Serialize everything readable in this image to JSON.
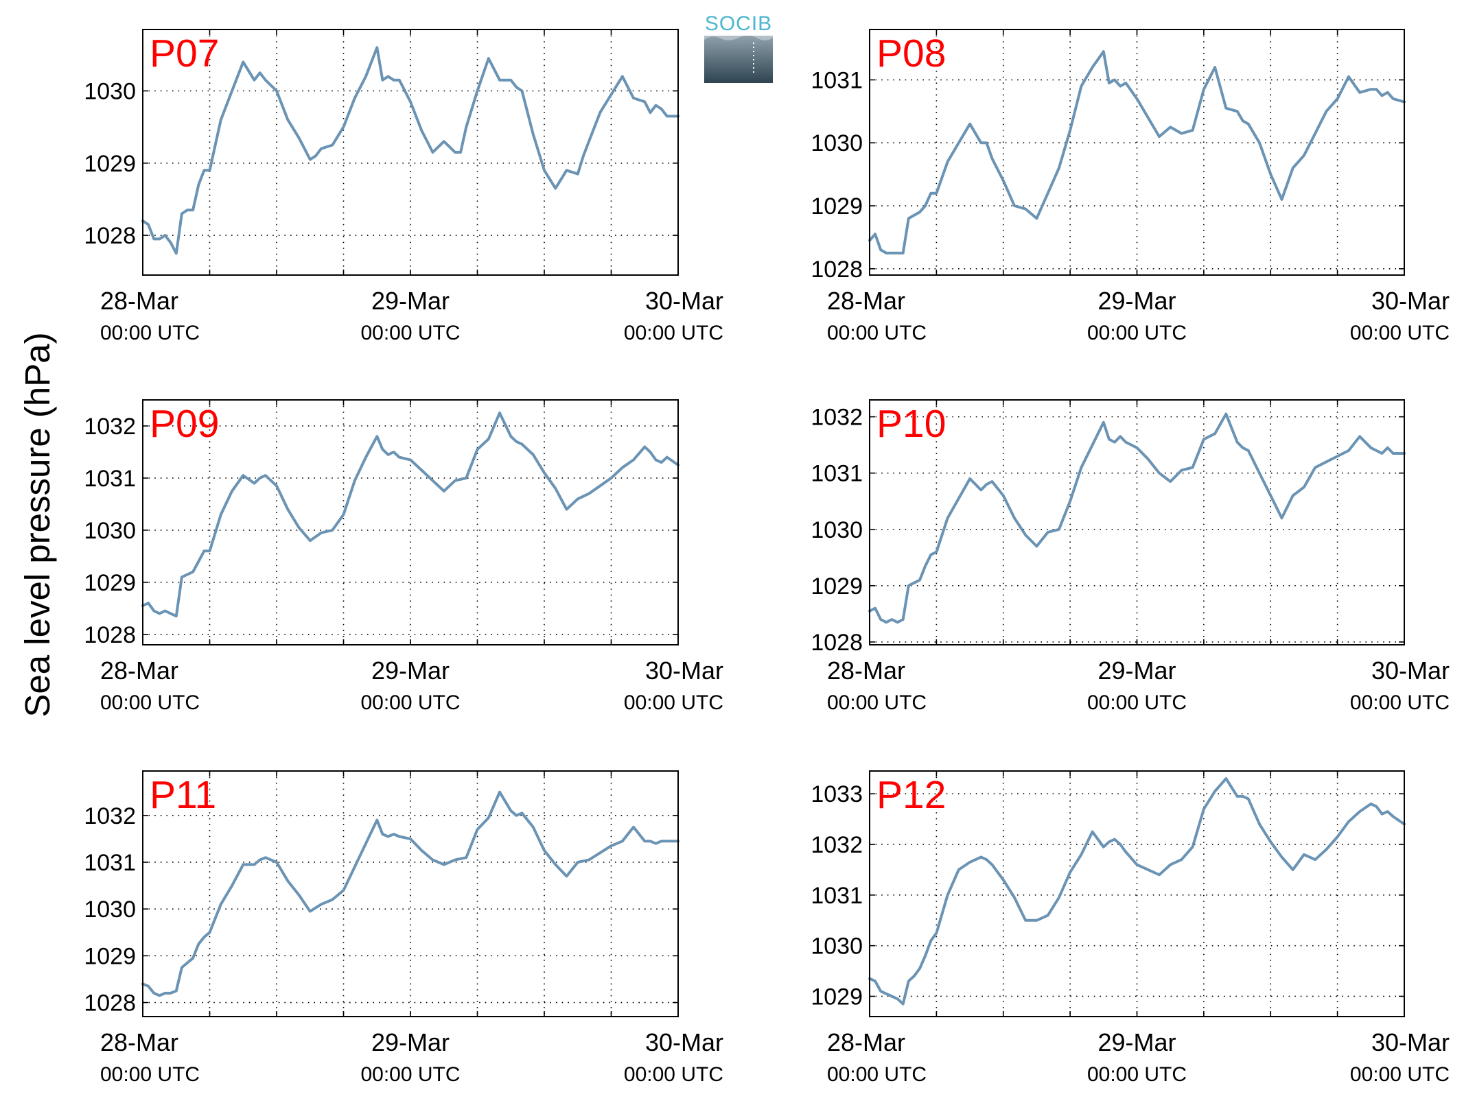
{
  "figure": {
    "ylabel": "Sea level pressure (hPa)",
    "logo_text": "SOCIB",
    "colors": {
      "line": "#6a93b4",
      "panel_label": "#ff0000",
      "axes": "#000000",
      "grid": "#000000"
    }
  },
  "chart_data": [
    {
      "type": "line",
      "title": "P07",
      "x_ticks": [
        {
          "x": 0,
          "label": "28-Mar",
          "sub": "00:00 UTC"
        },
        {
          "x": 24,
          "label": "29-Mar",
          "sub": "00:00 UTC"
        },
        {
          "x": 48,
          "label": "30-Mar",
          "sub": "00:00 UTC"
        }
      ],
      "x_range_hours": [
        0,
        48
      ],
      "x_grid_step_hours": 6,
      "ylim": [
        1027.45,
        1030.85
      ],
      "yticks": [
        1028,
        1029,
        1030
      ],
      "grid": "dotted",
      "series": [
        {
          "x": [
            0,
            0.5,
            1,
            1.5,
            2,
            2.5,
            3,
            3.5,
            4,
            4.5,
            5,
            5.5,
            6,
            7,
            8,
            9,
            10,
            10.5,
            11,
            12,
            13,
            14,
            15,
            15.5,
            16,
            17,
            18,
            19,
            20,
            21,
            21.5,
            22,
            22.5,
            23,
            24,
            25,
            26,
            27,
            28,
            28.5,
            29,
            30,
            31,
            32,
            33,
            33.5,
            34,
            35,
            36,
            37,
            38,
            39,
            39.5,
            40,
            41,
            42,
            43,
            44,
            45,
            45.5,
            46,
            46.5,
            47,
            48
          ],
          "y": [
            1028.2,
            1028.15,
            1027.95,
            1027.95,
            1028.0,
            1027.9,
            1027.75,
            1028.3,
            1028.35,
            1028.35,
            1028.7,
            1028.9,
            1028.9,
            1029.6,
            1030.0,
            1030.4,
            1030.15,
            1030.25,
            1030.15,
            1030.0,
            1029.6,
            1029.35,
            1029.05,
            1029.1,
            1029.2,
            1029.25,
            1029.5,
            1029.9,
            1030.2,
            1030.6,
            1030.15,
            1030.2,
            1030.15,
            1030.15,
            1029.85,
            1029.45,
            1029.15,
            1029.3,
            1029.15,
            1029.15,
            1029.5,
            1030.0,
            1030.45,
            1030.15,
            1030.15,
            1030.05,
            1030.0,
            1029.4,
            1028.9,
            1028.65,
            1028.9,
            1028.85,
            1029.1,
            1029.3,
            1029.7,
            1029.95,
            1030.2,
            1029.9,
            1029.85,
            1029.7,
            1029.8,
            1029.75,
            1029.65,
            1029.65
          ]
        }
      ]
    },
    {
      "type": "line",
      "title": "P08",
      "x_ticks": [
        {
          "x": 0,
          "label": "28-Mar",
          "sub": "00:00 UTC"
        },
        {
          "x": 24,
          "label": "29-Mar",
          "sub": "00:00 UTC"
        },
        {
          "x": 48,
          "label": "30-Mar",
          "sub": "00:00 UTC"
        }
      ],
      "x_range_hours": [
        0,
        48
      ],
      "x_grid_step_hours": 6,
      "ylim": [
        1027.9,
        1031.8
      ],
      "yticks": [
        1028,
        1029,
        1030,
        1031
      ],
      "grid": "dotted",
      "series": [
        {
          "x": [
            0,
            0.5,
            1,
            1.5,
            2,
            2.5,
            3,
            3.5,
            4,
            4.5,
            5,
            5.5,
            6,
            7,
            8,
            9,
            10,
            10.5,
            11,
            12,
            13,
            14,
            15,
            16,
            17,
            18,
            19,
            20,
            21,
            21.5,
            22,
            22.5,
            23,
            24,
            25,
            26,
            27,
            28,
            29,
            30,
            31,
            32,
            33,
            33.5,
            34,
            35,
            36,
            37,
            38,
            39,
            40,
            41,
            42,
            43,
            44,
            45,
            45.5,
            46,
            46.5,
            47,
            48
          ],
          "y": [
            1028.45,
            1028.55,
            1028.3,
            1028.25,
            1028.25,
            1028.25,
            1028.25,
            1028.8,
            1028.85,
            1028.9,
            1029.0,
            1029.2,
            1029.2,
            1029.7,
            1030.0,
            1030.3,
            1030.0,
            1030.0,
            1029.75,
            1029.4,
            1029.0,
            1028.95,
            1028.8,
            1029.2,
            1029.6,
            1030.2,
            1030.9,
            1031.2,
            1031.45,
            1030.95,
            1031.0,
            1030.9,
            1030.95,
            1030.7,
            1030.4,
            1030.1,
            1030.25,
            1030.15,
            1030.2,
            1030.85,
            1031.2,
            1030.55,
            1030.5,
            1030.35,
            1030.3,
            1030.0,
            1029.5,
            1029.1,
            1029.6,
            1029.8,
            1030.15,
            1030.5,
            1030.7,
            1031.05,
            1030.8,
            1030.85,
            1030.85,
            1030.75,
            1030.8,
            1030.7,
            1030.65
          ]
        }
      ]
    },
    {
      "type": "line",
      "title": "P09",
      "x_ticks": [
        {
          "x": 0,
          "label": "28-Mar",
          "sub": "00:00 UTC"
        },
        {
          "x": 24,
          "label": "29-Mar",
          "sub": "00:00 UTC"
        },
        {
          "x": 48,
          "label": "30-Mar",
          "sub": "00:00 UTC"
        }
      ],
      "x_range_hours": [
        0,
        48
      ],
      "x_grid_step_hours": 6,
      "ylim": [
        1027.8,
        1032.5
      ],
      "yticks": [
        1028,
        1029,
        1030,
        1031,
        1032
      ],
      "grid": "dotted",
      "series": [
        {
          "x": [
            0,
            0.5,
            1,
            1.5,
            2,
            2.5,
            3,
            3.5,
            4,
            4.5,
            5,
            5.5,
            6,
            7,
            8,
            9,
            10,
            10.5,
            11,
            12,
            13,
            14,
            15,
            16,
            17,
            18,
            19,
            20,
            21,
            21.5,
            22,
            22.5,
            23,
            24,
            25,
            26,
            27,
            28,
            29,
            30,
            31,
            32,
            33,
            33.5,
            34,
            35,
            36,
            37,
            38,
            39,
            40,
            41,
            42,
            43,
            44,
            45,
            45.5,
            46,
            46.5,
            47,
            48
          ],
          "y": [
            1028.55,
            1028.6,
            1028.45,
            1028.4,
            1028.45,
            1028.4,
            1028.35,
            1029.1,
            1029.15,
            1029.2,
            1029.4,
            1029.6,
            1029.6,
            1030.3,
            1030.75,
            1031.05,
            1030.9,
            1031.0,
            1031.05,
            1030.85,
            1030.4,
            1030.05,
            1029.8,
            1029.95,
            1030.0,
            1030.3,
            1030.95,
            1031.4,
            1031.8,
            1031.55,
            1031.45,
            1031.5,
            1031.4,
            1031.35,
            1031.15,
            1030.95,
            1030.75,
            1030.95,
            1031.0,
            1031.55,
            1031.75,
            1032.25,
            1031.8,
            1031.7,
            1031.65,
            1031.45,
            1031.1,
            1030.8,
            1030.4,
            1030.6,
            1030.7,
            1030.85,
            1031.0,
            1031.2,
            1031.35,
            1031.6,
            1031.5,
            1031.35,
            1031.3,
            1031.4,
            1031.25
          ]
        }
      ]
    },
    {
      "type": "line",
      "title": "P10",
      "x_ticks": [
        {
          "x": 0,
          "label": "28-Mar",
          "sub": "00:00 UTC"
        },
        {
          "x": 24,
          "label": "29-Mar",
          "sub": "00:00 UTC"
        },
        {
          "x": 48,
          "label": "30-Mar",
          "sub": "00:00 UTC"
        }
      ],
      "x_range_hours": [
        0,
        48
      ],
      "x_grid_step_hours": 6,
      "ylim": [
        1027.95,
        1032.3
      ],
      "yticks": [
        1028,
        1029,
        1030,
        1031,
        1032
      ],
      "grid": "dotted",
      "series": [
        {
          "x": [
            0,
            0.5,
            1,
            1.5,
            2,
            2.5,
            3,
            3.5,
            4,
            4.5,
            5,
            5.5,
            6,
            7,
            8,
            9,
            10,
            10.5,
            11,
            12,
            13,
            14,
            15,
            16,
            17,
            18,
            19,
            20,
            21,
            21.5,
            22,
            22.5,
            23,
            24,
            25,
            26,
            27,
            28,
            29,
            30,
            31,
            32,
            33,
            33.5,
            34,
            35,
            36,
            37,
            38,
            39,
            40,
            41,
            42,
            43,
            44,
            45,
            45.5,
            46,
            46.5,
            47,
            48
          ],
          "y": [
            1028.55,
            1028.6,
            1028.4,
            1028.35,
            1028.4,
            1028.35,
            1028.4,
            1029.0,
            1029.05,
            1029.1,
            1029.35,
            1029.55,
            1029.6,
            1030.2,
            1030.55,
            1030.9,
            1030.7,
            1030.8,
            1030.85,
            1030.6,
            1030.2,
            1029.9,
            1029.7,
            1029.95,
            1030.0,
            1030.5,
            1031.1,
            1031.5,
            1031.9,
            1031.6,
            1031.55,
            1031.65,
            1031.55,
            1031.45,
            1031.25,
            1031.0,
            1030.85,
            1031.05,
            1031.1,
            1031.6,
            1031.7,
            1032.05,
            1031.55,
            1031.45,
            1031.4,
            1031.0,
            1030.6,
            1030.2,
            1030.6,
            1030.75,
            1031.1,
            1031.2,
            1031.3,
            1031.4,
            1031.65,
            1031.45,
            1031.4,
            1031.35,
            1031.45,
            1031.35,
            1031.35
          ]
        }
      ]
    },
    {
      "type": "line",
      "title": "P11",
      "x_ticks": [
        {
          "x": 0,
          "label": "28-Mar",
          "sub": "00:00 UTC"
        },
        {
          "x": 24,
          "label": "29-Mar",
          "sub": "00:00 UTC"
        },
        {
          "x": 48,
          "label": "30-Mar",
          "sub": "00:00 UTC"
        }
      ],
      "x_range_hours": [
        0,
        48
      ],
      "x_grid_step_hours": 6,
      "ylim": [
        1027.7,
        1032.95
      ],
      "yticks": [
        1028,
        1029,
        1030,
        1031,
        1032
      ],
      "grid": "dotted",
      "series": [
        {
          "x": [
            0,
            0.5,
            1,
            1.5,
            2,
            2.5,
            3,
            3.5,
            4,
            4.5,
            5,
            5.5,
            6,
            7,
            8,
            9,
            10,
            10.5,
            11,
            12,
            13,
            14,
            15,
            16,
            17,
            18,
            19,
            20,
            21,
            21.5,
            22,
            22.5,
            23,
            24,
            25,
            26,
            27,
            28,
            29,
            30,
            31,
            32,
            33,
            33.5,
            34,
            35,
            36,
            37,
            38,
            39,
            40,
            41,
            42,
            43,
            44,
            45,
            45.5,
            46,
            46.5,
            47,
            48
          ],
          "y": [
            1028.4,
            1028.35,
            1028.2,
            1028.15,
            1028.2,
            1028.2,
            1028.25,
            1028.75,
            1028.85,
            1028.95,
            1029.25,
            1029.4,
            1029.5,
            1030.1,
            1030.5,
            1030.95,
            1030.95,
            1031.05,
            1031.1,
            1031.0,
            1030.6,
            1030.3,
            1029.95,
            1030.1,
            1030.2,
            1030.4,
            1030.9,
            1031.4,
            1031.9,
            1031.6,
            1031.55,
            1031.6,
            1031.55,
            1031.5,
            1031.25,
            1031.05,
            1030.95,
            1031.05,
            1031.1,
            1031.7,
            1031.95,
            1032.5,
            1032.1,
            1032.0,
            1032.05,
            1031.75,
            1031.25,
            1030.95,
            1030.7,
            1031.0,
            1031.05,
            1031.2,
            1031.35,
            1031.45,
            1031.75,
            1031.45,
            1031.45,
            1031.4,
            1031.45,
            1031.45,
            1031.45
          ]
        }
      ]
    },
    {
      "type": "line",
      "title": "P12",
      "x_ticks": [
        {
          "x": 0,
          "label": "28-Mar",
          "sub": "00:00 UTC"
        },
        {
          "x": 24,
          "label": "29-Mar",
          "sub": "00:00 UTC"
        },
        {
          "x": 48,
          "label": "30-Mar",
          "sub": "00:00 UTC"
        }
      ],
      "x_range_hours": [
        0,
        48
      ],
      "x_grid_step_hours": 6,
      "ylim": [
        1028.6,
        1033.45
      ],
      "yticks": [
        1029,
        1030,
        1031,
        1032,
        1033
      ],
      "grid": "dotted",
      "series": [
        {
          "x": [
            0,
            0.5,
            1,
            1.5,
            2,
            2.5,
            3,
            3.5,
            4,
            4.5,
            5,
            5.5,
            6,
            7,
            8,
            9,
            10,
            10.5,
            11,
            12,
            13,
            14,
            15,
            16,
            17,
            18,
            19,
            20,
            21,
            21.5,
            22,
            22.5,
            23,
            24,
            25,
            26,
            27,
            28,
            29,
            30,
            31,
            32,
            33,
            33.5,
            34,
            35,
            36,
            37,
            38,
            39,
            40,
            41,
            42,
            43,
            44,
            45,
            45.5,
            46,
            46.5,
            47,
            48
          ],
          "y": [
            1029.35,
            1029.3,
            1029.1,
            1029.05,
            1029.0,
            1028.95,
            1028.85,
            1029.3,
            1029.4,
            1029.55,
            1029.8,
            1030.1,
            1030.25,
            1031.0,
            1031.5,
            1031.65,
            1031.75,
            1031.7,
            1031.6,
            1031.3,
            1030.95,
            1030.5,
            1030.5,
            1030.6,
            1030.95,
            1031.45,
            1031.8,
            1032.25,
            1031.95,
            1032.05,
            1032.1,
            1032.0,
            1031.85,
            1031.6,
            1031.5,
            1031.4,
            1031.6,
            1031.7,
            1031.95,
            1032.7,
            1033.05,
            1033.3,
            1032.95,
            1032.95,
            1032.9,
            1032.4,
            1032.05,
            1031.75,
            1031.5,
            1031.8,
            1031.7,
            1031.9,
            1032.15,
            1032.45,
            1032.65,
            1032.8,
            1032.75,
            1032.6,
            1032.65,
            1032.55,
            1032.4
          ]
        }
      ]
    }
  ]
}
